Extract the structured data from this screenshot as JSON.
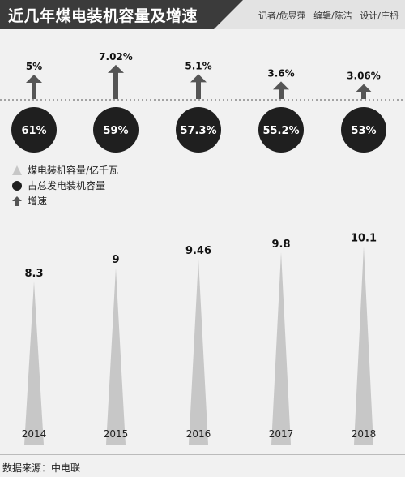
{
  "header": {
    "title": "近几年煤电装机容量及增速",
    "credits": [
      "记者/危昱萍",
      "编辑/陈洁",
      "设计/庄枬"
    ]
  },
  "source": "数据来源：中电联",
  "legend": [
    {
      "label": "煤电装机容量/亿千瓦",
      "marker": "triangle"
    },
    {
      "label": "占总发电装机容量",
      "marker": "circle"
    },
    {
      "label": "增速",
      "marker": "arrow"
    }
  ],
  "colors": {
    "triangle": "#c7c7c7",
    "circle": "#1f1f1f",
    "arrow": "#555555",
    "background": "#f1f1f1"
  },
  "chart_data": {
    "type": "bar",
    "categories": [
      "2014",
      "2015",
      "2016",
      "2017",
      "2018"
    ],
    "series": [
      {
        "name": "煤电装机容量/亿千瓦",
        "values": [
          8.3,
          9,
          9.46,
          9.8,
          10.1
        ],
        "labels": [
          "8.3",
          "9",
          "9.46",
          "9.8",
          "10.1"
        ]
      },
      {
        "name": "占总发电装机容量",
        "values": [
          61,
          59,
          57.3,
          55.2,
          53
        ],
        "labels": [
          "61%",
          "59%",
          "57.3%",
          "55.2%",
          "53%"
        ]
      },
      {
        "name": "增速",
        "values": [
          5,
          7.02,
          5.1,
          3.6,
          3.06
        ],
        "labels": [
          "5%",
          "7.02%",
          "5.1%",
          "3.6%",
          "3.06%"
        ]
      }
    ]
  }
}
